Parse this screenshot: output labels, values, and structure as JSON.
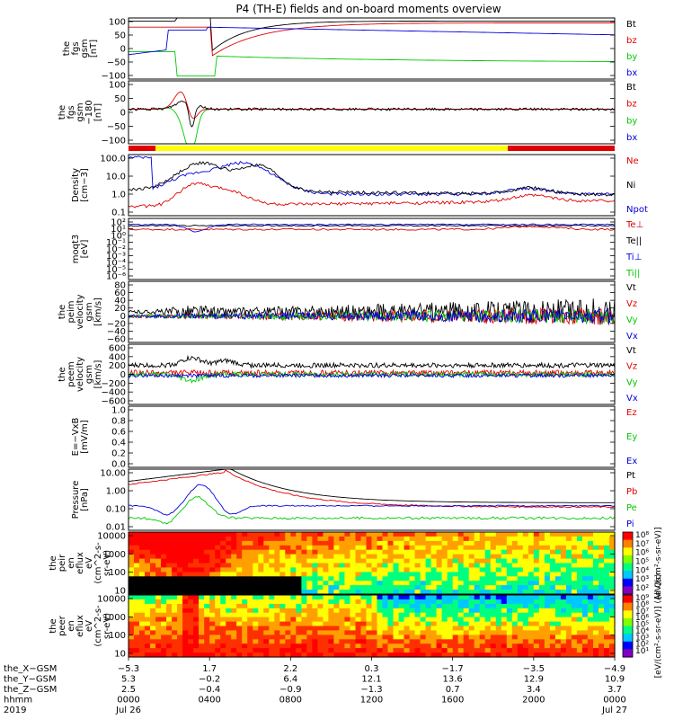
{
  "title": "P4 (TH-E) fields and on-board moments overview",
  "colors": {
    "black": "#000000",
    "red": "#e00000",
    "green": "#00c800",
    "blue": "#0000dd",
    "yellow": "#ffff00"
  },
  "chart_data": [
    {
      "type": "line",
      "ylabel": [
        "the",
        "fgs",
        "gsm",
        "[nT]"
      ],
      "yticks": [
        "100",
        "50",
        "0",
        "−50",
        "−100"
      ],
      "ylim": [
        -100,
        100
      ],
      "legend": [
        {
          "name": "Bt",
          "color": "#000000"
        },
        {
          "name": "bz",
          "color": "#e00000"
        },
        {
          "name": "by",
          "color": "#00c800"
        },
        {
          "name": "bx",
          "color": "#0000dd"
        }
      ]
    },
    {
      "type": "line",
      "ylabel": [
        "the",
        "fgs",
        "gsm",
        "−180",
        "[nT]"
      ],
      "yticks": [
        "100",
        "50",
        "0",
        "−50",
        "−100"
      ],
      "ylim": [
        -120,
        110
      ],
      "legend": [
        {
          "name": "Bt",
          "color": "#000000"
        },
        {
          "name": "bz",
          "color": "#e00000"
        },
        {
          "name": "by",
          "color": "#00c800"
        },
        {
          "name": "bx",
          "color": "#0000dd"
        }
      ]
    },
    {
      "type": "line",
      "scale": "log",
      "ylabel": [
        "Density",
        "[cm−3]"
      ],
      "yticks": [
        "100.0",
        "10.0",
        "1.0",
        "0.1"
      ],
      "legend": [
        {
          "name": "Ne",
          "color": "#e00000"
        },
        {
          "name": "Ni",
          "color": "#000000"
        },
        {
          "name": "Npot",
          "color": "#0000dd"
        }
      ]
    },
    {
      "type": "line",
      "scale": "log",
      "ylabel": [
        "moqt3",
        "[eV]"
      ],
      "yticks": [
        "10²",
        "10¹",
        "10⁰",
        "10⁻¹",
        "10⁻²",
        "10⁻³",
        "10⁻⁴",
        "10⁻⁵",
        "10⁻⁶"
      ],
      "legend": [
        {
          "name": "Te⊥",
          "color": "#e00000"
        },
        {
          "name": "Te||",
          "color": "#000000"
        },
        {
          "name": "Ti⊥",
          "color": "#0000dd"
        },
        {
          "name": "Ti||",
          "color": "#00c800"
        }
      ]
    },
    {
      "type": "line",
      "ylabel": [
        "the",
        "peim",
        "velocity",
        "gsm",
        "[km/s]"
      ],
      "yticks": [
        "80",
        "60",
        "40",
        "20",
        "0",
        "−20",
        "−40",
        "−60"
      ],
      "ylim": [
        -60,
        80
      ],
      "legend": [
        {
          "name": "Vt",
          "color": "#000000"
        },
        {
          "name": "Vz",
          "color": "#e00000"
        },
        {
          "name": "Vy",
          "color": "#00c800"
        },
        {
          "name": "Vx",
          "color": "#0000dd"
        }
      ]
    },
    {
      "type": "line",
      "ylabel": [
        "the",
        "peem",
        "velocity",
        "gsm",
        "[km/s]"
      ],
      "yticks": [
        "600",
        "400",
        "200",
        "0",
        "−200",
        "−400",
        "−600"
      ],
      "ylim": [
        -600,
        600
      ],
      "legend": [
        {
          "name": "Vt",
          "color": "#000000"
        },
        {
          "name": "Vz",
          "color": "#e00000"
        },
        {
          "name": "Vy",
          "color": "#00c800"
        },
        {
          "name": "Vx",
          "color": "#0000dd"
        }
      ]
    },
    {
      "type": "line",
      "ylabel": [
        "E=−VxB",
        "[mV/m]"
      ],
      "yticks": [
        "1.0",
        "0.8",
        "0.6",
        "0.4",
        "0.2",
        "0.0"
      ],
      "ylim": [
        0,
        1
      ],
      "legend": [
        {
          "name": "Ez",
          "color": "#e00000"
        },
        {
          "name": "Ey",
          "color": "#00c800"
        },
        {
          "name": "Ex",
          "color": "#0000dd"
        }
      ]
    },
    {
      "type": "line",
      "scale": "log",
      "ylabel": [
        "Pressure",
        "[nPa]"
      ],
      "yticks": [
        "10.00",
        "1.00",
        "0.10",
        "0.01"
      ],
      "legend": [
        {
          "name": "Pt",
          "color": "#000000"
        },
        {
          "name": "Pb",
          "color": "#e00000"
        },
        {
          "name": "Pe",
          "color": "#00c800"
        },
        {
          "name": "Pi",
          "color": "#0000dd"
        }
      ]
    },
    {
      "type": "heatmap",
      "ylabel": [
        "the",
        "peir",
        "en",
        "eflux",
        "eV",
        "(cm^2-s-",
        "sr-eV)"
      ],
      "yticks": [
        "10000",
        "1000",
        "100",
        "10"
      ],
      "colorbar": {
        "label": "[eV/(cm²-s-sr-eV)]",
        "ticks": [
          "10⁸",
          "10⁷",
          "10⁶",
          "10⁵",
          "10⁴",
          "10³",
          "10²"
        ]
      }
    },
    {
      "type": "heatmap",
      "ylabel": [
        "the",
        "peer",
        "en",
        "eflux",
        "eV",
        "(cm^2-s-",
        "sr-eV)"
      ],
      "yticks": [
        "10000",
        "1000",
        "100",
        "10"
      ],
      "colorbar": {
        "label": "[eV/(cm²-s-sr-eV)] (All Qs)",
        "ticks": [
          "10⁹",
          "10⁸",
          "10⁷",
          "10⁶",
          "10⁵",
          "10⁴",
          "10³",
          "10²",
          "10¹"
        ]
      }
    }
  ],
  "xaxis": {
    "row_labels": [
      "the_X−GSM",
      "the_Y−GSM",
      "the_Z−GSM",
      "hhmm",
      "2019"
    ],
    "columns": [
      [
        "−5.3",
        "5.3",
        "2.5",
        "0000",
        "Jul 26"
      ],
      [
        "1.7",
        "−0.2",
        "−0.4",
        "0400",
        ""
      ],
      [
        "2.2",
        "6.4",
        "−0.9",
        "0800",
        ""
      ],
      [
        "0.3",
        "12.1",
        "−1.3",
        "1200",
        ""
      ],
      [
        "−1.7",
        "13.6",
        "0.7",
        "1600",
        ""
      ],
      [
        "−3.5",
        "12.9",
        "3.4",
        "2000",
        ""
      ],
      [
        "−4.9",
        "10.9",
        "3.7",
        "0000",
        "Jul 27"
      ]
    ]
  }
}
